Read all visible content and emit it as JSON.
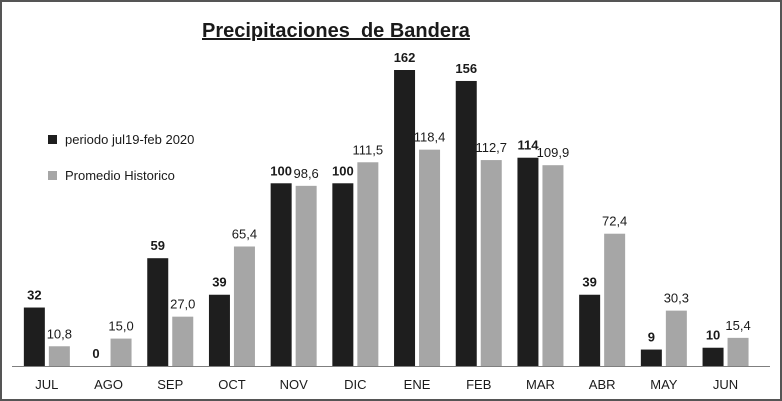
{
  "chart_data": {
    "type": "bar",
    "title": "Precipitaciones  de Bandera",
    "categories": [
      "JUL",
      "AGO",
      "SEP",
      "OCT",
      "NOV",
      "DIC",
      "ENE",
      "FEB",
      "MAR",
      "ABR",
      "MAY",
      "JUN"
    ],
    "series": [
      {
        "name": "periodo jul19-feb 2020",
        "values": [
          32,
          0,
          59,
          39,
          100,
          100,
          162,
          156,
          114,
          39,
          9,
          10
        ],
        "labels": [
          "32",
          "0",
          "59",
          "39",
          "100",
          "100",
          "162",
          "156",
          "114",
          "39",
          "9",
          "10"
        ],
        "color": "#1e1e1e"
      },
      {
        "name": "Promedio Historico",
        "values": [
          10.8,
          15.0,
          27.0,
          65.4,
          98.6,
          111.5,
          118.4,
          112.7,
          109.9,
          72.4,
          30.3,
          15.4
        ],
        "labels": [
          "10,8",
          "15,0",
          "27,0",
          "65,4",
          "98,6",
          "111,5",
          "118,4",
          "112,7",
          "109,9",
          "72,4",
          "30,3",
          "15,4"
        ],
        "color": "#a6a6a6"
      }
    ],
    "ylim": [
      0,
      170
    ],
    "legend": "left",
    "grid": false
  }
}
